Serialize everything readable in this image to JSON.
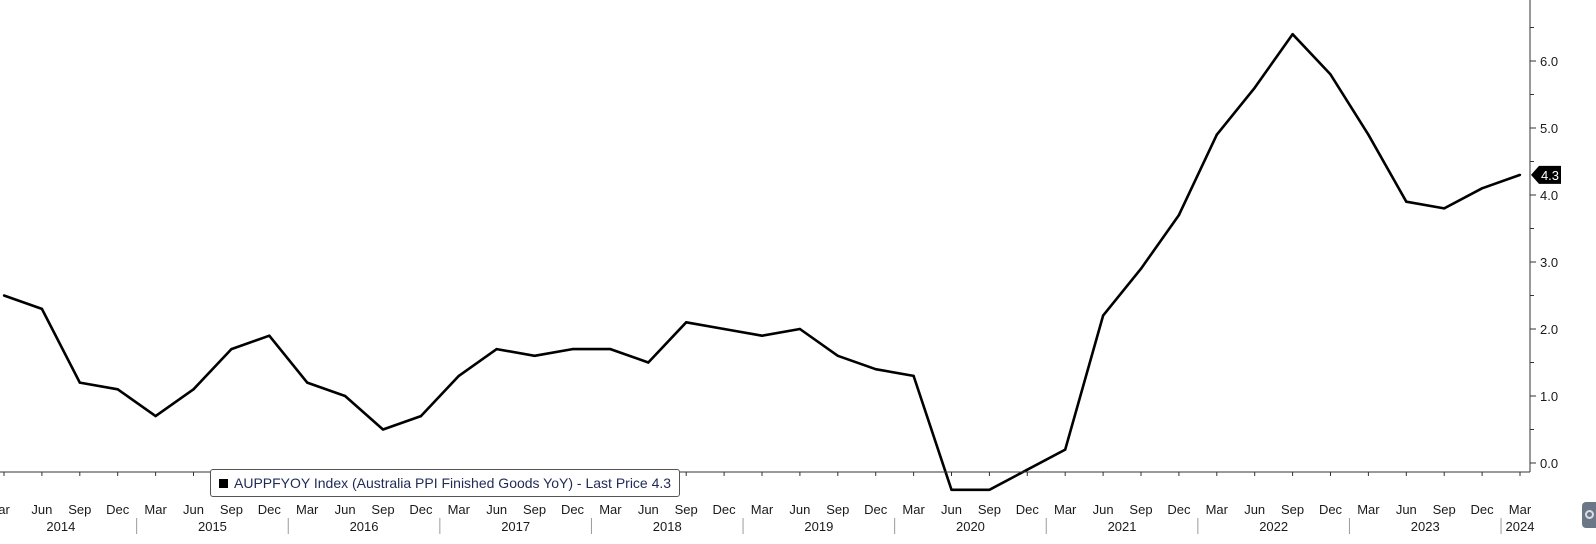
{
  "chart_data": {
    "type": "line",
    "series": [
      {
        "name": "AUPPFYOY Index (Australia PPI Finished Goods YoY) - Last Price 4.3",
        "color": "#000000",
        "points": [
          {
            "x": "2014-03",
            "y": 2.5
          },
          {
            "x": "2014-06",
            "y": 2.3
          },
          {
            "x": "2014-09",
            "y": 1.2
          },
          {
            "x": "2014-12",
            "y": 1.1
          },
          {
            "x": "2015-03",
            "y": 0.7
          },
          {
            "x": "2015-06",
            "y": 1.1
          },
          {
            "x": "2015-09",
            "y": 1.7
          },
          {
            "x": "2015-12",
            "y": 1.9
          },
          {
            "x": "2016-03",
            "y": 1.2
          },
          {
            "x": "2016-06",
            "y": 1.0
          },
          {
            "x": "2016-09",
            "y": 0.5
          },
          {
            "x": "2016-12",
            "y": 0.7
          },
          {
            "x": "2017-03",
            "y": 1.3
          },
          {
            "x": "2017-06",
            "y": 1.7
          },
          {
            "x": "2017-09",
            "y": 1.6
          },
          {
            "x": "2017-12",
            "y": 1.7
          },
          {
            "x": "2018-03",
            "y": 1.7
          },
          {
            "x": "2018-06",
            "y": 1.5
          },
          {
            "x": "2018-09",
            "y": 2.1
          },
          {
            "x": "2018-12",
            "y": 2.0
          },
          {
            "x": "2019-03",
            "y": 1.9
          },
          {
            "x": "2019-06",
            "y": 2.0
          },
          {
            "x": "2019-09",
            "y": 1.6
          },
          {
            "x": "2019-12",
            "y": 1.4
          },
          {
            "x": "2020-03",
            "y": 1.3
          },
          {
            "x": "2020-06",
            "y": -0.4
          },
          {
            "x": "2020-09",
            "y": -0.4
          },
          {
            "x": "2020-12",
            "y": -0.1
          },
          {
            "x": "2021-03",
            "y": 0.2
          },
          {
            "x": "2021-06",
            "y": 2.2
          },
          {
            "x": "2021-09",
            "y": 2.9
          },
          {
            "x": "2021-12",
            "y": 3.7
          },
          {
            "x": "2022-03",
            "y": 4.9
          },
          {
            "x": "2022-06",
            "y": 5.6
          },
          {
            "x": "2022-09",
            "y": 6.4
          },
          {
            "x": "2022-12",
            "y": 5.8
          },
          {
            "x": "2023-03",
            "y": 4.9
          },
          {
            "x": "2023-06",
            "y": 3.9
          },
          {
            "x": "2023-09",
            "y": 3.8
          },
          {
            "x": "2023-12",
            "y": 4.1
          },
          {
            "x": "2024-03",
            "y": 4.3
          }
        ]
      }
    ],
    "x_tick_labels": [
      "ar",
      "Jun",
      "Sep",
      "Dec",
      "Mar",
      "Jun",
      "Sep",
      "Dec",
      "Mar",
      "Jun",
      "Sep",
      "Dec",
      "Mar",
      "Jun",
      "Sep",
      "Dec",
      "Mar",
      "Jun",
      "Sep",
      "Dec",
      "Mar",
      "Jun",
      "Sep",
      "Dec",
      "Mar",
      "Jun",
      "Sep",
      "Dec",
      "Mar",
      "Jun",
      "Sep",
      "Dec",
      "Mar",
      "Jun",
      "Sep",
      "Dec",
      "Mar",
      "Jun",
      "Sep",
      "Dec",
      "Mar"
    ],
    "year_labels": [
      "2014",
      "2015",
      "2016",
      "2017",
      "2018",
      "2019",
      "2020",
      "2021",
      "2022",
      "2023",
      "2024"
    ],
    "y_ticks": [
      0.0,
      1.0,
      2.0,
      3.0,
      4.0,
      5.0,
      6.0
    ],
    "y_tick_labels": [
      "0.0",
      "1.0",
      "2.0",
      "3.0",
      "4.0",
      "5.0",
      "6.0"
    ],
    "ylim": [
      -0.4,
      6.4
    ],
    "last_price_label": "4.3",
    "legend": {
      "text": "AUPPFYOY Index (Australia PPI Finished Goods YoY) - Last Price 4.3",
      "placement": "bottom-left"
    },
    "grid": false,
    "y_axis_side": "right"
  },
  "colors": {
    "line": "#000000",
    "axis": "#333333",
    "legend_text": "#1f2a55",
    "scroll_button": "#6b7787"
  },
  "icons": {
    "scroll": "scroll-right-icon"
  }
}
